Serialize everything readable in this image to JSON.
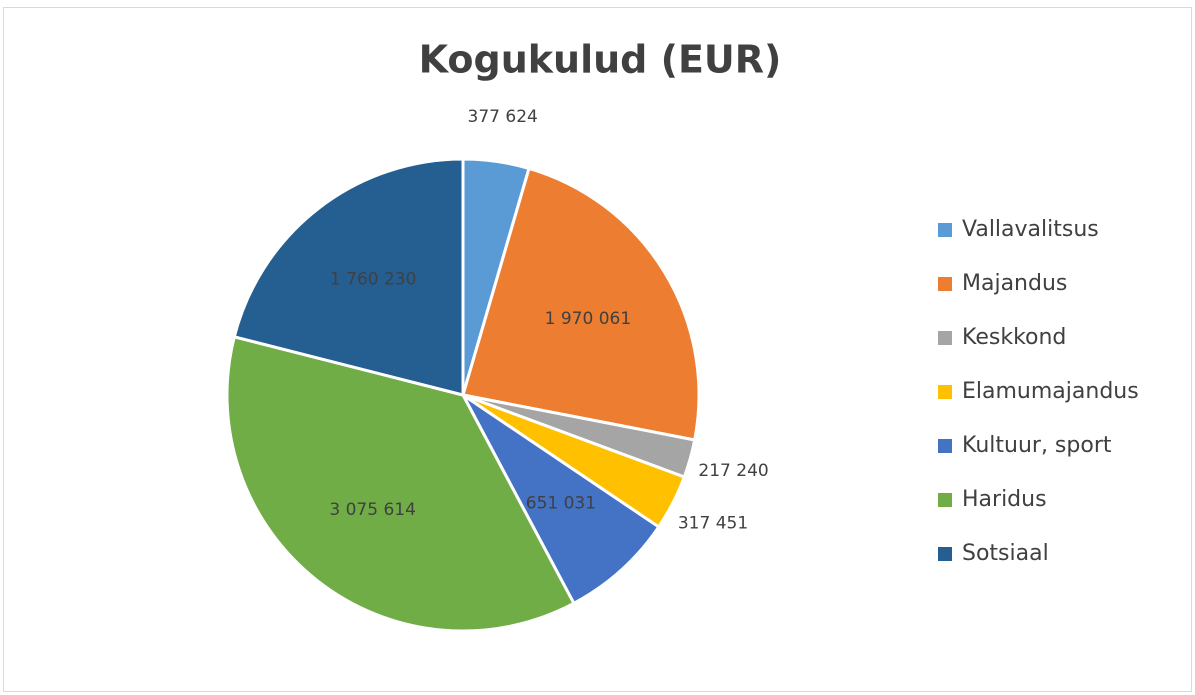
{
  "chart_data": {
    "type": "pie",
    "title": "Kogukulud (EUR)",
    "categories": [
      "Vallavalitsus",
      "Majandus",
      "Keskkond",
      "Elamumajandus",
      "Kultuur, sport",
      "Haridus",
      "Sotsiaal"
    ],
    "values": [
      377624,
      1970061,
      217240,
      317451,
      651031,
      3075614,
      1760230
    ],
    "value_labels": [
      "377 624",
      "1 970 061",
      "217 240",
      "317 451",
      "651 031",
      "3 075 614",
      "1 760 230"
    ],
    "colors": [
      "#5b9bd5",
      "#ed7d31",
      "#a5a5a5",
      "#ffc000",
      "#4472c4",
      "#70ad47",
      "#255e91"
    ],
    "legend": "right"
  }
}
